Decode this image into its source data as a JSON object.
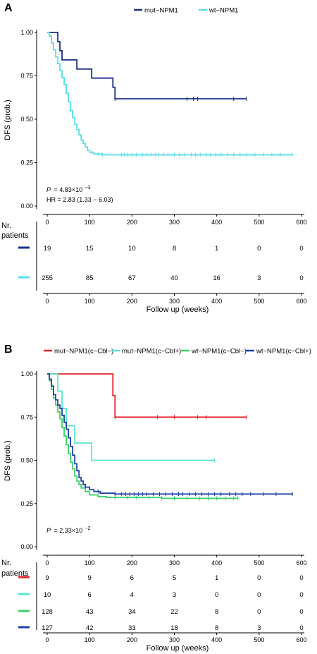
{
  "colors": {
    "dark_blue": "#1a2f8a",
    "cyan": "#57e0e6",
    "red": "#e3242b",
    "turquoise": "#59e6cf",
    "green": "#3ed16a",
    "blue": "#2141a8",
    "axis": "#000000"
  },
  "chart_data": [
    {
      "panel_label": "A",
      "type": "line",
      "step": true,
      "xlabel": "",
      "ylabel": "DFS (prob.)",
      "xlim": [
        0,
        600
      ],
      "ylim": [
        0,
        1
      ],
      "x_ticks": [
        0,
        100,
        200,
        300,
        400,
        500,
        600
      ],
      "y_ticks": [
        "0.00",
        "0.25",
        "0.50",
        "0.75",
        "1.00"
      ],
      "legend_position": "top",
      "series": [
        {
          "name": "mut−NPM1",
          "color": "#1a2f8a",
          "steps": [
            [
              0,
              1.0
            ],
            [
              25,
              0.947
            ],
            [
              30,
              0.895
            ],
            [
              35,
              0.842
            ],
            [
              70,
              0.789
            ],
            [
              105,
              0.737
            ],
            [
              155,
              0.684
            ],
            [
              160,
              0.618
            ],
            [
              470,
              0.618
            ]
          ],
          "censor_x": [
            160,
            330,
            345,
            355,
            440,
            470
          ]
        },
        {
          "name": "wt−NPM1",
          "color": "#57e0e6",
          "steps": [
            [
              0,
              1.0
            ],
            [
              5,
              0.98
            ],
            [
              10,
              0.94
            ],
            [
              15,
              0.9
            ],
            [
              20,
              0.86
            ],
            [
              25,
              0.82
            ],
            [
              30,
              0.78
            ],
            [
              35,
              0.74
            ],
            [
              40,
              0.7
            ],
            [
              45,
              0.65
            ],
            [
              50,
              0.6
            ],
            [
              55,
              0.55
            ],
            [
              60,
              0.51
            ],
            [
              65,
              0.47
            ],
            [
              70,
              0.44
            ],
            [
              75,
              0.41
            ],
            [
              80,
              0.38
            ],
            [
              85,
              0.36
            ],
            [
              90,
              0.34
            ],
            [
              95,
              0.32
            ],
            [
              100,
              0.31
            ],
            [
              110,
              0.3
            ],
            [
              130,
              0.295
            ],
            [
              580,
              0.295
            ]
          ],
          "censor_x": [
            105,
            120,
            130,
            175,
            182,
            190,
            200,
            210,
            225,
            235,
            245,
            255,
            262,
            275,
            285,
            300,
            312,
            325,
            340,
            350,
            362,
            375,
            385,
            398,
            410,
            425,
            440,
            455,
            470,
            490,
            510,
            530,
            550,
            578
          ]
        }
      ],
      "annotations": [
        {
          "kind": "pvalue",
          "prefix": "P",
          "text": "= 4.83×10",
          "exp": "−3"
        },
        {
          "kind": "hr",
          "text": "HR = 2.83 (1.33 − 6.03)"
        }
      ],
      "risk_table": {
        "title_line1": "Nr.",
        "title_line2": "patients",
        "xlabel": "Follow up (weeks)",
        "time_points": [
          0,
          100,
          200,
          300,
          400,
          500,
          600
        ],
        "rows": [
          {
            "color": "#1a2f8a",
            "counts": [
              "19",
              "15",
              "10",
              "8",
              "1",
              "0",
              "0"
            ]
          },
          {
            "color": "#57e0e6",
            "counts": [
              "255",
              "85",
              "67",
              "40",
              "16",
              "3",
              "0"
            ]
          }
        ]
      }
    },
    {
      "panel_label": "B",
      "type": "line",
      "step": true,
      "xlabel": "",
      "ylabel": "DFS (prob.)",
      "xlim": [
        0,
        600
      ],
      "ylim": [
        0,
        1
      ],
      "x_ticks": [
        0,
        100,
        200,
        300,
        400,
        500,
        600
      ],
      "y_ticks": [
        "0.00",
        "0.25",
        "0.50",
        "0.75",
        "1.00"
      ],
      "legend_position": "top",
      "series": [
        {
          "name": "mut−NPM1(c−Cbl−)",
          "color": "#e3242b",
          "steps": [
            [
              0,
              1.0
            ],
            [
              155,
              0.875
            ],
            [
              160,
              0.75
            ],
            [
              470,
              0.75
            ]
          ],
          "censor_x": [
            160,
            260,
            300,
            355,
            375,
            470
          ]
        },
        {
          "name": "mut−NPM1(c−Cbl+)",
          "color": "#59e6cf",
          "steps": [
            [
              0,
              1.0
            ],
            [
              25,
              0.9
            ],
            [
              35,
              0.8
            ],
            [
              45,
              0.7
            ],
            [
              65,
              0.6
            ],
            [
              105,
              0.5
            ],
            [
              395,
              0.5
            ]
          ],
          "censor_x": [
            395
          ]
        },
        {
          "name": "wt−NPM1(c−Cbl−)",
          "color": "#3ed16a",
          "steps": [
            [
              0,
              1.0
            ],
            [
              5,
              0.96
            ],
            [
              10,
              0.91
            ],
            [
              15,
              0.86
            ],
            [
              20,
              0.82
            ],
            [
              25,
              0.78
            ],
            [
              30,
              0.74
            ],
            [
              35,
              0.69
            ],
            [
              40,
              0.64
            ],
            [
              45,
              0.59
            ],
            [
              50,
              0.54
            ],
            [
              55,
              0.49
            ],
            [
              60,
              0.45
            ],
            [
              65,
              0.41
            ],
            [
              70,
              0.38
            ],
            [
              75,
              0.36
            ],
            [
              80,
              0.34
            ],
            [
              90,
              0.32
            ],
            [
              100,
              0.3
            ],
            [
              120,
              0.29
            ],
            [
              140,
              0.285
            ],
            [
              270,
              0.28
            ],
            [
              450,
              0.28
            ]
          ],
          "censor_x": [
            160,
            190,
            210,
            240,
            270,
            300,
            330,
            360,
            380,
            400,
            420,
            440,
            450
          ]
        },
        {
          "name": "wt−NPM1(c−Cbl+)",
          "color": "#2141a8",
          "steps": [
            [
              0,
              1.0
            ],
            [
              5,
              0.97
            ],
            [
              10,
              0.93
            ],
            [
              15,
              0.88
            ],
            [
              20,
              0.85
            ],
            [
              25,
              0.82
            ],
            [
              30,
              0.8
            ],
            [
              35,
              0.76
            ],
            [
              40,
              0.72
            ],
            [
              45,
              0.68
            ],
            [
              50,
              0.63
            ],
            [
              55,
              0.58
            ],
            [
              60,
              0.53
            ],
            [
              65,
              0.48
            ],
            [
              70,
              0.44
            ],
            [
              75,
              0.4
            ],
            [
              80,
              0.38
            ],
            [
              85,
              0.36
            ],
            [
              90,
              0.345
            ],
            [
              100,
              0.33
            ],
            [
              110,
              0.32
            ],
            [
              125,
              0.31
            ],
            [
              160,
              0.305
            ],
            [
              580,
              0.305
            ]
          ],
          "censor_x": [
            120,
            160,
            175,
            185,
            195,
            205,
            215,
            225,
            235,
            250,
            265,
            280,
            295,
            310,
            320,
            335,
            350,
            365,
            380,
            395,
            410,
            430,
            445,
            460,
            480,
            510,
            540,
            578
          ]
        }
      ],
      "annotations": [
        {
          "kind": "pvalue",
          "prefix": "P",
          "text": "= 2.33×10",
          "exp": "−2"
        }
      ],
      "risk_table": {
        "title_line1": "Nr.",
        "title_line2": "patients",
        "xlabel": "Follow up (weeks)",
        "time_points": [
          0,
          100,
          200,
          300,
          400,
          500,
          600
        ],
        "rows": [
          {
            "color": "#e3242b",
            "counts": [
              "9",
              "9",
              "6",
              "5",
              "1",
              "0",
              "0"
            ]
          },
          {
            "color": "#59e6cf",
            "counts": [
              "10",
              "6",
              "4",
              "3",
              "0",
              "0",
              "0"
            ]
          },
          {
            "color": "#3ed16a",
            "counts": [
              "128",
              "43",
              "34",
              "22",
              "8",
              "0",
              "0"
            ]
          },
          {
            "color": "#2141a8",
            "counts": [
              "127",
              "42",
              "33",
              "18",
              "8",
              "3",
              "0"
            ]
          }
        ]
      }
    }
  ]
}
